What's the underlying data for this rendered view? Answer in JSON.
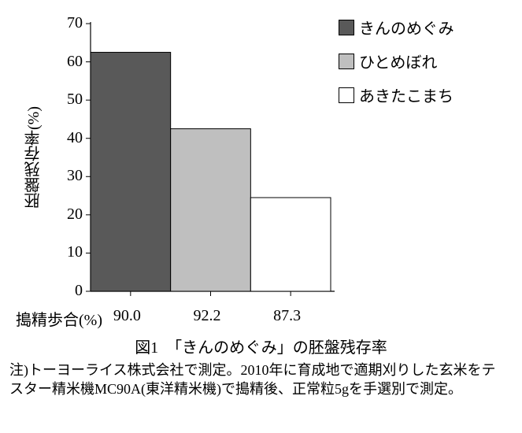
{
  "chart": {
    "type": "bar",
    "ylabel": "胚盤残存率(%)",
    "ylim": [
      0,
      70
    ],
    "ytick_step": 10,
    "yticks": [
      0,
      10,
      20,
      30,
      40,
      50,
      60,
      70
    ],
    "label_fontsize": 20,
    "tick_fontsize": 20,
    "axis_color": "#000000",
    "tick_len": 6,
    "background_color": "#ffffff",
    "bar_border_color": "#000000",
    "bars": [
      {
        "name": "きんのめぐみ",
        "value": 62.5,
        "fill": "#595959",
        "x_label": "90.0"
      },
      {
        "name": "ひとめぼれ",
        "value": 42.5,
        "fill": "#bfbfbf",
        "x_label": "92.2"
      },
      {
        "name": "あきたこまち",
        "value": 24.5,
        "fill": "#ffffff",
        "x_label": "87.3"
      }
    ],
    "x_row_label": "搗精歩合(%)"
  },
  "legend": {
    "items": [
      {
        "label": "きんのめぐみ",
        "fill": "#595959"
      },
      {
        "label": "ひとめぼれ",
        "fill": "#bfbfbf"
      },
      {
        "label": "あきたこまち",
        "fill": "#ffffff"
      }
    ]
  },
  "caption": "図1　「きんのめぐみ」の胚盤残存率",
  "footnote": "注)トーヨーライス株式会社で測定。2010年に育成地で適期刈りした玄米をテスター精米機MC90A(東洋精米機)で搗精後、正常粒5gを手選別で測定。"
}
